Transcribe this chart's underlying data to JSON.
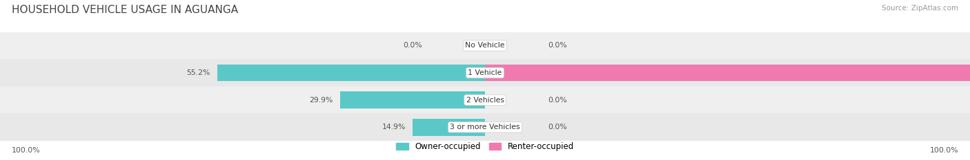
{
  "title": "HOUSEHOLD VEHICLE USAGE IN AGUANGA",
  "source": "Source: ZipAtlas.com",
  "categories": [
    "No Vehicle",
    "1 Vehicle",
    "2 Vehicles",
    "3 or more Vehicles"
  ],
  "owner_values": [
    0.0,
    55.2,
    29.9,
    14.9
  ],
  "renter_values": [
    0.0,
    100.0,
    0.0,
    0.0
  ],
  "owner_color": "#5bc8c8",
  "renter_color": "#f07ab0",
  "row_bg_colors": [
    "#efefef",
    "#e8e8e8",
    "#efefef",
    "#e8e8e8"
  ],
  "max_value": 100.0,
  "legend_owner": "Owner-occupied",
  "legend_renter": "Renter-occupied",
  "title_fontsize": 11,
  "bar_height": 0.62,
  "figsize": [
    14.06,
    2.33
  ],
  "dpi": 100,
  "x_left_label": "100.0%",
  "x_right_label": "100.0%"
}
